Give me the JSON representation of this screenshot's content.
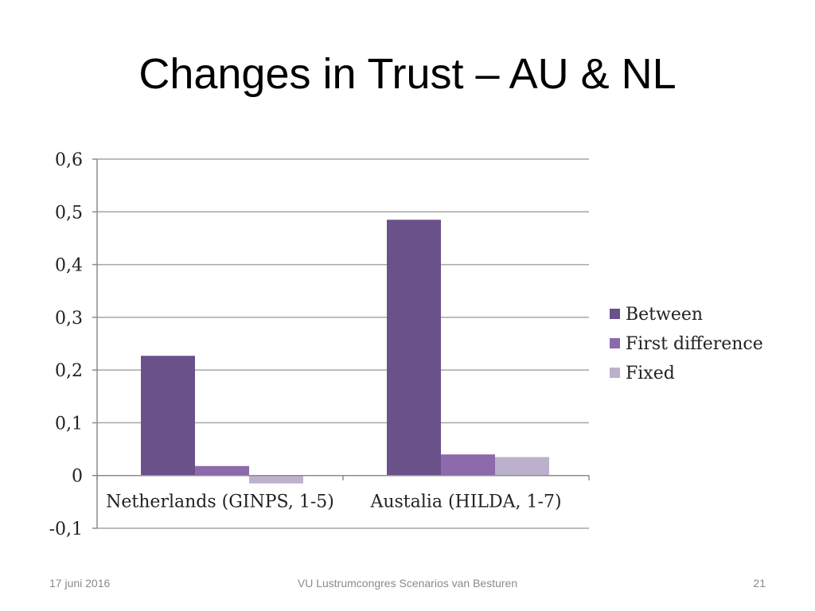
{
  "slide": {
    "title": "Changes in Trust – AU & NL",
    "footer_date": "17 juni 2016",
    "footer_center": "VU Lustrumcongres Scenarios van Besturen",
    "page_number": "21"
  },
  "chart_data": {
    "type": "bar",
    "categories": [
      "Netherlands (GINPS, 1-5)",
      "Austalia (HILDA, 1-7)"
    ],
    "series": [
      {
        "name": "Between",
        "values": [
          0.227,
          0.485
        ],
        "color": "#6b5189"
      },
      {
        "name": "First difference",
        "values": [
          0.018,
          0.04
        ],
        "color": "#8c6aab"
      },
      {
        "name": "Fixed",
        "values": [
          -0.015,
          0.035
        ],
        "color": "#bcb1cd"
      }
    ],
    "ylim": [
      -0.1,
      0.6
    ],
    "yticks": [
      "-0,1",
      "0",
      "0,1",
      "0,2",
      "0,3",
      "0,4",
      "0,5",
      "0,6"
    ],
    "ytick_values": [
      -0.1,
      0,
      0.1,
      0.2,
      0.3,
      0.4,
      0.5,
      0.6
    ],
    "grid": true,
    "legend": "right",
    "title": "",
    "xlabel": "",
    "ylabel": ""
  }
}
